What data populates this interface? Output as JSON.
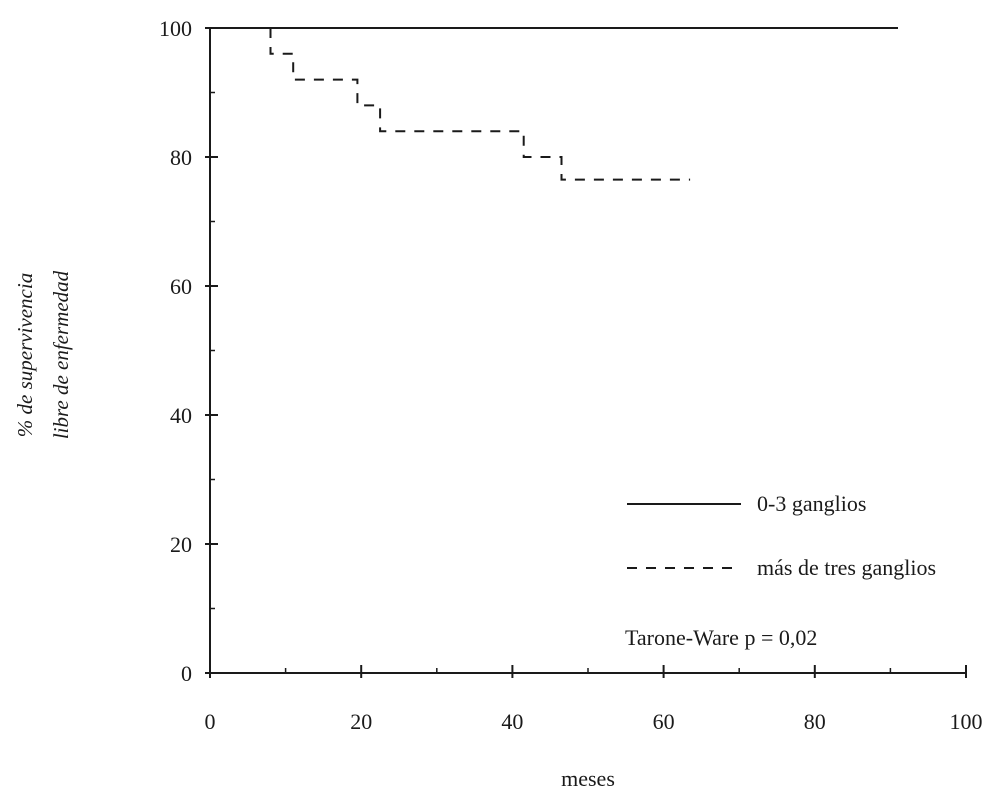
{
  "chart_data": {
    "type": "line",
    "title": "",
    "xlabel": "meses",
    "ylabel": [
      "% de supervivencia",
      "libre de enfermedad"
    ],
    "xlim": [
      0,
      100
    ],
    "ylim": [
      0,
      100
    ],
    "x_ticks": [
      0,
      20,
      40,
      60,
      80,
      100
    ],
    "y_ticks": [
      0,
      20,
      40,
      60,
      80,
      100
    ],
    "x_tick_labels": [
      "0",
      "20",
      "40",
      "60",
      "80",
      "100"
    ],
    "y_tick_labels": [
      "0",
      "20",
      "40",
      "60",
      "80",
      "100"
    ],
    "grid": false,
    "legend_position": "bottom-right",
    "series": [
      {
        "name": "0-3 ganglios",
        "style": "solid",
        "step": true,
        "points": [
          [
            0,
            100
          ],
          [
            91,
            100
          ]
        ]
      },
      {
        "name": "más de tres ganglios",
        "style": "dashed",
        "step": true,
        "points": [
          [
            8,
            100
          ],
          [
            8,
            96
          ],
          [
            11,
            96
          ],
          [
            11,
            92
          ],
          [
            19.5,
            92
          ],
          [
            19.5,
            88
          ],
          [
            22.5,
            88
          ],
          [
            22.5,
            84
          ],
          [
            41.5,
            84
          ],
          [
            41.5,
            80
          ],
          [
            46.5,
            80
          ],
          [
            46.5,
            76.5
          ],
          [
            63.5,
            76.5
          ]
        ]
      }
    ],
    "annotations": [
      "Tarone-Ware p = 0,02"
    ]
  }
}
